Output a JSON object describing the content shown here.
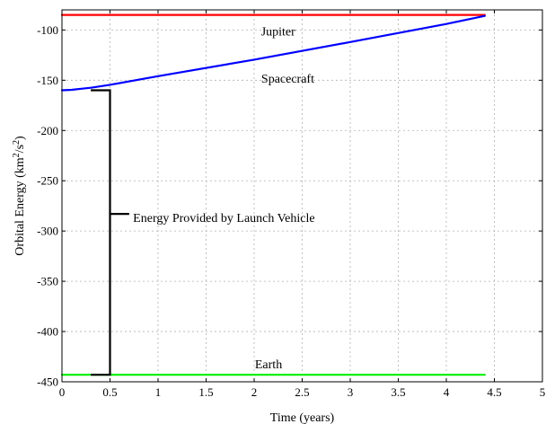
{
  "chart_data": {
    "type": "line",
    "title": "",
    "xlabel": "Time (years)",
    "ylabel_parts": [
      "Orbital Energy (km",
      "2",
      "/s",
      "2",
      ")"
    ],
    "xlim": [
      0,
      5
    ],
    "ylim": [
      -450,
      -80
    ],
    "xticks": [
      0,
      0.5,
      1,
      1.5,
      2,
      2.5,
      3,
      3.5,
      4,
      4.5,
      5
    ],
    "xtick_labels": [
      "0",
      "0.5",
      "1",
      "1.5",
      "2",
      "2.5",
      "3",
      "3.5",
      "4",
      "4.5",
      "5"
    ],
    "yticks": [
      -450,
      -400,
      -350,
      -300,
      -250,
      -200,
      -150,
      -100
    ],
    "ytick_labels": [
      "-450",
      "-400",
      "-350",
      "-300",
      "-250",
      "-200",
      "-150",
      "-100"
    ],
    "grid": true,
    "series": [
      {
        "name": "Jupiter",
        "color": "#ff0000",
        "x": [
          0,
          4.4
        ],
        "y": [
          -85,
          -85
        ]
      },
      {
        "name": "Spacecraft",
        "color": "#0000ff",
        "x": [
          0,
          0.1,
          0.2,
          0.3,
          0.5,
          1,
          2,
          3,
          4,
          4.4
        ],
        "y": [
          -160,
          -159.5,
          -158.5,
          -157.5,
          -154.5,
          -146,
          -129.5,
          -112,
          -94,
          -86
        ]
      },
      {
        "name": "Earth",
        "color": "#00ee00",
        "x": [
          0,
          4.4
        ],
        "y": [
          -443,
          -443
        ]
      }
    ],
    "bracket": {
      "x_left": 0.3,
      "x_right": 0.5,
      "y_top": -160,
      "y_bottom": -443,
      "tick_to_x": 0.7,
      "label_y": -283
    },
    "annotations": [
      {
        "id": "jupiter",
        "text": "Jupiter",
        "x": 2.25,
        "y": -101
      },
      {
        "id": "spacecraft",
        "text": "Spacecraft",
        "x": 2.35,
        "y": -148
      },
      {
        "id": "earth",
        "text": "Earth",
        "x": 2.15,
        "y": -432
      },
      {
        "id": "energy",
        "text": "Energy Provided by Launch Vehicle",
        "x": 0.74,
        "y": -286.5
      }
    ]
  }
}
